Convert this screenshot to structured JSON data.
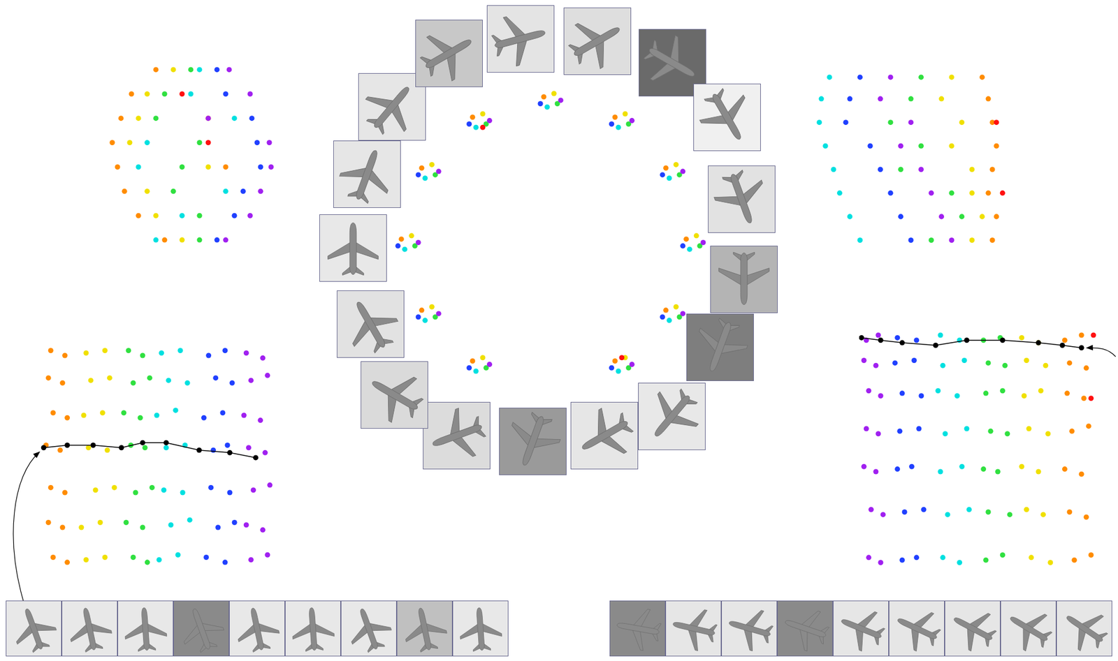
{
  "chart_data": [
    {
      "type": "scatter",
      "tick_labels": false,
      "xlim": [
        0,
        100
      ],
      "ylim": [
        0,
        100
      ],
      "series": [
        {
          "color": "#ff8c00",
          "x": [
            30,
            16,
            10,
            5,
            8,
            12,
            20,
            35,
            60,
            70
          ],
          "y": [
            92,
            80,
            68,
            56,
            44,
            32,
            20,
            8,
            68,
            44
          ]
        },
        {
          "color": "#f0e000",
          "x": [
            40,
            25,
            20,
            15,
            60,
            25,
            30,
            45
          ],
          "y": [
            92,
            80,
            68,
            56,
            44,
            32,
            20,
            8
          ]
        },
        {
          "color": "#30e040",
          "x": [
            50,
            35,
            30,
            55,
            45,
            40,
            55,
            55
          ],
          "y": [
            92,
            80,
            68,
            56,
            44,
            32,
            20,
            8
          ]
        },
        {
          "color": "#00e0e0",
          "x": [
            55,
            50,
            75,
            25,
            20,
            70,
            45,
            30
          ],
          "y": [
            92,
            80,
            68,
            56,
            44,
            32,
            20,
            8
          ]
        },
        {
          "color": "#2040ff",
          "x": [
            65,
            70,
            85,
            88,
            90,
            80,
            75,
            65
          ],
          "y": [
            92,
            80,
            68,
            56,
            44,
            32,
            20,
            8
          ]
        },
        {
          "color": "#a020f0",
          "x": [
            72,
            84,
            60,
            95,
            96,
            90,
            84,
            70
          ],
          "y": [
            92,
            80,
            68,
            56,
            44,
            32,
            20,
            8
          ]
        },
        {
          "color": "#ff1010",
          "x": [
            45,
            60
          ],
          "y": [
            80,
            56
          ]
        }
      ]
    },
    {
      "type": "scatter",
      "tick_labels": false,
      "xlim": [
        0,
        100
      ],
      "ylim": [
        0,
        100
      ],
      "series": [
        {
          "color": "#ff8c00",
          "x": [
            48,
            69,
            84,
            90,
            84,
            69,
            27,
            12,
            6,
            12,
            27
          ],
          "y": [
            93,
            87,
            72,
            51,
            30,
            15,
            15,
            30,
            51,
            72,
            87
          ]
        },
        {
          "color": "#f0e000",
          "x": [
            51,
            72,
            87,
            93,
            87,
            72,
            30,
            15,
            9,
            15,
            30
          ],
          "y": [
            94,
            88,
            73,
            52,
            31,
            16,
            16,
            31,
            52,
            73,
            88
          ]
        },
        {
          "color": "#30e040",
          "x": [
            52,
            73,
            88,
            94,
            88,
            73,
            31,
            16,
            10,
            16,
            31
          ],
          "y": [
            91,
            85,
            70,
            49,
            28,
            13,
            13,
            28,
            49,
            70,
            85
          ]
        },
        {
          "color": "#00e0e0",
          "x": [
            49,
            70,
            85,
            91,
            85,
            70,
            28,
            13,
            7,
            13,
            28
          ],
          "y": [
            90,
            84,
            69,
            48,
            27,
            12,
            12,
            27,
            48,
            69,
            84
          ]
        },
        {
          "color": "#2040ff",
          "x": [
            47,
            68,
            83,
            89,
            83,
            68,
            26,
            11,
            5,
            11,
            26
          ],
          "y": [
            91,
            85,
            70,
            49,
            28,
            13,
            13,
            28,
            49,
            70,
            85
          ]
        },
        {
          "color": "#a020f0",
          "x": [
            53,
            74,
            89,
            95,
            89,
            74,
            32,
            17,
            11,
            17,
            32
          ],
          "y": [
            92,
            86,
            71,
            50,
            29,
            14,
            14,
            29,
            50,
            71,
            86
          ]
        },
        {
          "color": "#ff1010",
          "x": [
            30,
            71
          ],
          "y": [
            84,
            16
          ]
        }
      ]
    },
    {
      "type": "scatter",
      "tick_labels": false,
      "xlim": [
        0,
        100
      ],
      "ylim": [
        0,
        100
      ],
      "series": [
        {
          "color": "#00e0e0",
          "x": [
            10,
            6,
            5,
            8,
            12,
            15,
            20,
            25
          ],
          "y": [
            95,
            84,
            72,
            60,
            48,
            36,
            24,
            12
          ]
        },
        {
          "color": "#2040ff",
          "x": [
            25,
            20,
            18,
            30,
            35,
            40,
            45,
            50
          ],
          "y": [
            95,
            84,
            72,
            60,
            48,
            36,
            24,
            12
          ]
        },
        {
          "color": "#a020f0",
          "x": [
            40,
            35,
            50,
            45,
            55,
            60,
            65,
            70
          ],
          "y": [
            95,
            84,
            72,
            60,
            48,
            36,
            24,
            12
          ]
        },
        {
          "color": "#30e040",
          "x": [
            55,
            50,
            40,
            55,
            45,
            70,
            75,
            60
          ],
          "y": [
            95,
            84,
            72,
            60,
            48,
            36,
            24,
            12
          ]
        },
        {
          "color": "#f0e000",
          "x": [
            70,
            65,
            75,
            70,
            80,
            80,
            85,
            80
          ],
          "y": [
            95,
            84,
            72,
            60,
            48,
            36,
            24,
            12
          ]
        },
        {
          "color": "#ff8c00",
          "x": [
            85,
            88,
            90,
            92,
            90,
            88,
            92,
            90
          ],
          "y": [
            95,
            84,
            72,
            60,
            48,
            36,
            24,
            12
          ]
        },
        {
          "color": "#ff1010",
          "x": [
            92,
            95
          ],
          "y": [
            72,
            36
          ]
        }
      ]
    },
    {
      "type": "scatter",
      "tick_labels": false,
      "xlim": [
        0,
        100
      ],
      "ylim": [
        0,
        100
      ],
      "series": [
        {
          "color": "#ff8c00",
          "x": [
            5,
            11,
            4,
            10,
            6,
            12,
            3,
            9,
            5,
            11,
            4,
            10,
            6,
            12
          ],
          "y": [
            95,
            93,
            84,
            82,
            70,
            68,
            57,
            55,
            40,
            38,
            26,
            24,
            12,
            10
          ]
        },
        {
          "color": "#f0e000",
          "x": [
            20,
            28,
            22,
            30,
            19,
            27,
            21,
            29,
            24,
            32,
            18,
            26,
            20,
            28
          ],
          "y": [
            94,
            95,
            83,
            84,
            69,
            70,
            56,
            55,
            39,
            40,
            24,
            26,
            11,
            12
          ]
        },
        {
          "color": "#30e040",
          "x": [
            38,
            44,
            40,
            47,
            36,
            43,
            39,
            45,
            41,
            48,
            37,
            44,
            40,
            46
          ],
          "y": [
            95,
            93,
            82,
            84,
            70,
            68,
            57,
            56,
            38,
            40,
            26,
            24,
            12,
            10
          ]
        },
        {
          "color": "#00e0e0",
          "x": [
            52,
            60,
            55,
            63,
            50,
            58,
            54,
            62,
            53,
            61,
            56,
            64,
            51,
            59
          ],
          "y": [
            94,
            95,
            83,
            82,
            69,
            71,
            56,
            57,
            39,
            38,
            25,
            27,
            11,
            13
          ]
        },
        {
          "color": "#2040ff",
          "x": [
            72,
            79,
            75,
            82,
            70,
            78,
            74,
            80,
            73,
            81,
            76,
            83,
            71,
            79
          ],
          "y": [
            93,
            95,
            84,
            82,
            68,
            70,
            55,
            57,
            40,
            38,
            24,
            26,
            12,
            10
          ]
        },
        {
          "color": "#a020f0",
          "x": [
            88,
            95,
            90,
            97,
            87,
            94,
            89,
            96,
            91,
            98,
            88,
            95,
            90,
            97
          ],
          "y": [
            94,
            92,
            83,
            85,
            69,
            67,
            56,
            54,
            39,
            41,
            25,
            23,
            11,
            13
          ]
        },
        {
          "type": "line",
          "color": "#000000",
          "marker": "circle",
          "x": [
            2,
            12,
            23,
            35,
            44,
            54,
            68,
            81,
            92
          ],
          "y": [
            56,
            57,
            57,
            56,
            58,
            58,
            55,
            54,
            52
          ]
        }
      ]
    },
    {
      "type": "scatter",
      "tick_labels": false,
      "xlim": [
        0,
        100
      ],
      "ylim": [
        0,
        100
      ],
      "series": [
        {
          "color": "#a020f0",
          "x": [
            3,
            8,
            2,
            7,
            4,
            9,
            3,
            8,
            2,
            7,
            5,
            10,
            4,
            9
          ],
          "y": [
            95,
            97,
            87,
            85,
            75,
            73,
            60,
            58,
            45,
            43,
            28,
            26,
            9,
            7
          ]
        },
        {
          "color": "#2040ff",
          "x": [
            16,
            24,
            15,
            23,
            18,
            26,
            17,
            25,
            16,
            22,
            19,
            27,
            18,
            24
          ],
          "y": [
            96,
            95,
            86,
            87,
            74,
            73,
            59,
            60,
            44,
            45,
            27,
            28,
            8,
            9
          ]
        },
        {
          "color": "#00e0e0",
          "x": [
            34,
            42,
            35,
            44,
            33,
            41,
            36,
            45,
            34,
            43,
            37,
            46,
            35,
            42
          ],
          "y": [
            97,
            95,
            85,
            87,
            75,
            73,
            58,
            60,
            43,
            45,
            26,
            28,
            9,
            7
          ]
        },
        {
          "color": "#30e040",
          "x": [
            52,
            59,
            54,
            61,
            53,
            60,
            55,
            62,
            52,
            58,
            54,
            63,
            53,
            60
          ],
          "y": [
            95,
            96,
            86,
            85,
            74,
            75,
            59,
            58,
            44,
            43,
            27,
            26,
            8,
            10
          ]
        },
        {
          "color": "#f0e000",
          "x": [
            68,
            75,
            70,
            78,
            69,
            76,
            71,
            79,
            68,
            75,
            70,
            77,
            72,
            80
          ],
          "y": [
            96,
            94,
            87,
            85,
            73,
            75,
            60,
            58,
            45,
            43,
            28,
            26,
            9,
            7
          ]
        },
        {
          "color": "#ff8c00",
          "x": [
            86,
            93,
            88,
            95,
            87,
            94,
            89,
            96,
            86,
            93,
            88,
            95,
            90,
            97
          ],
          "y": [
            95,
            97,
            86,
            84,
            74,
            72,
            59,
            61,
            44,
            42,
            27,
            25,
            8,
            10
          ]
        },
        {
          "color": "#ff1010",
          "x": [
            98,
            97
          ],
          "y": [
            97,
            72
          ]
        },
        {
          "type": "line",
          "color": "#000000",
          "marker": "circle",
          "x": [
            1,
            9,
            18,
            32,
            45,
            60,
            75,
            85,
            93
          ],
          "y": [
            96,
            95,
            94,
            93,
            95,
            95,
            94,
            93,
            92
          ]
        }
      ]
    }
  ]
}
